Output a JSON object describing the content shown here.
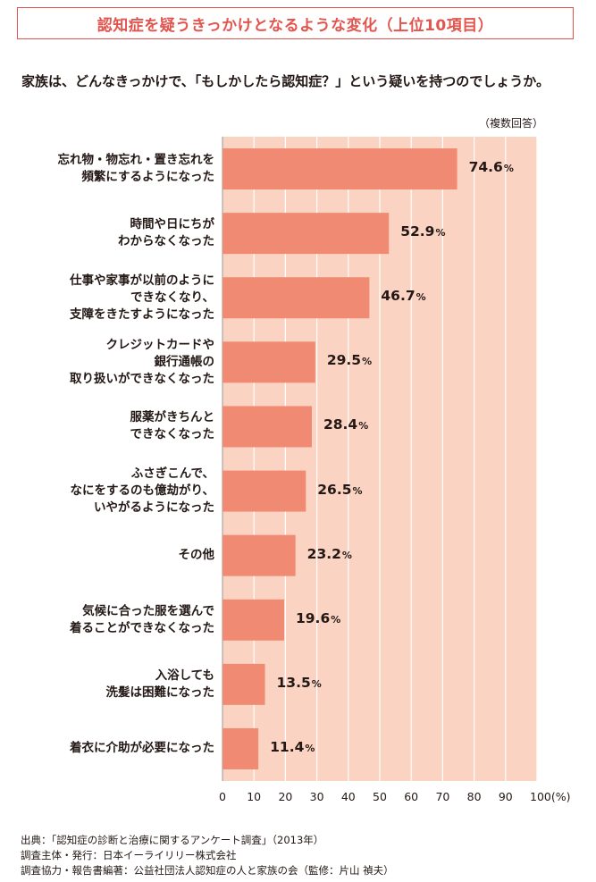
{
  "title": "認知症を疑うきっかけとなるような変化（上位10項目）",
  "question": "家族は、どんなきっかけで、「もしかしたら認知症？」という疑いを持つのでしょうか。",
  "note": "（複数回答）",
  "chart_data": {
    "type": "bar",
    "orientation": "horizontal",
    "title": "認知症を疑うきっかけとなるような変化（上位10項目）",
    "categories": [
      "忘れ物・物忘れ・置き忘れを\n頻繁にするようになった",
      "時間や日にちが\nわからなくなった",
      "仕事や家事が以前のように\nできなくなり、\n支障をきたすようになった",
      "クレジットカードや\n銀行通帳の\n取り扱いができなくなった",
      "服薬がきちんと\nできなくなった",
      "ふさぎこんで、\nなにをするのも億劫がり、\nいやがるようになった",
      "その他",
      "気候に合った服を選んで\n着ることができなくなった",
      "入浴しても\n洗髪は困難になった",
      "着衣に介助が必要になった"
    ],
    "values": [
      74.6,
      52.9,
      46.7,
      29.5,
      28.4,
      26.5,
      23.2,
      19.6,
      13.5,
      11.4
    ],
    "value_labels": [
      "74.6",
      "52.9",
      "46.7",
      "29.5",
      "28.4",
      "26.5",
      "23.2",
      "19.6",
      "13.5",
      "11.4"
    ],
    "value_unit": "%",
    "xlim": [
      0,
      100
    ],
    "xticks": [
      0,
      10,
      20,
      30,
      40,
      50,
      60,
      70,
      80,
      90,
      100
    ],
    "xtick_labels": [
      "0",
      "10",
      "20",
      "30",
      "40",
      "50",
      "60",
      "70",
      "80",
      "90",
      "100(%)"
    ],
    "xlabel": "(%)",
    "ylabel": "",
    "grid": true,
    "colors": {
      "bar": "#f08a72",
      "background": "#fbd3c2",
      "grid": "#ffffff",
      "accent": "#e2554f"
    }
  },
  "footer": [
    "出典：「認知症の診断と治療に関するアンケート調査」（2013年）",
    "調査主体・発行：日本イーライリリー株式会社",
    "調査協力・報告書編著：公益社団法人認知症の人と家族の会（監修：片山 禎夫）"
  ]
}
